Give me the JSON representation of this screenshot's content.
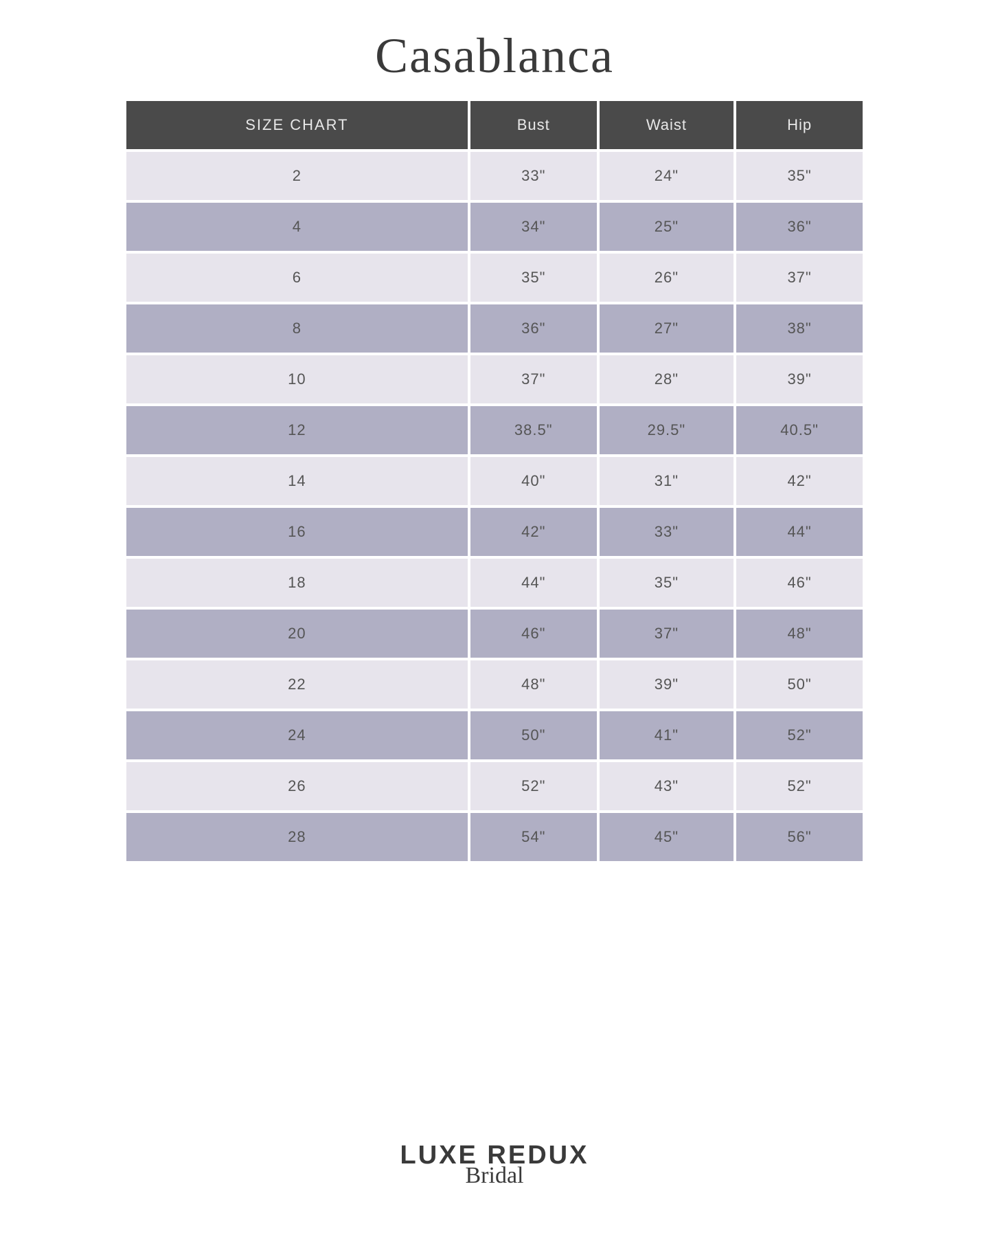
{
  "title": "Casablanca",
  "table": {
    "columns": [
      "SIZE CHART",
      "Bust",
      "Waist",
      "Hip"
    ],
    "rows": [
      [
        "2",
        "33\"",
        "24\"",
        "35\""
      ],
      [
        "4",
        "34\"",
        "25\"",
        "36\""
      ],
      [
        "6",
        "35\"",
        "26\"",
        "37\""
      ],
      [
        "8",
        "36\"",
        "27\"",
        "38\""
      ],
      [
        "10",
        "37\"",
        "28\"",
        "39\""
      ],
      [
        "12",
        "38.5\"",
        "29.5\"",
        "40.5\""
      ],
      [
        "14",
        "40\"",
        "31\"",
        "42\""
      ],
      [
        "16",
        "42\"",
        "33\"",
        "44\""
      ],
      [
        "18",
        "44\"",
        "35\"",
        "46\""
      ],
      [
        "20",
        "46\"",
        "37\"",
        "48\""
      ],
      [
        "22",
        "48\"",
        "39\"",
        "50\""
      ],
      [
        "24",
        "50\"",
        "41\"",
        "52\""
      ],
      [
        "26",
        "52\"",
        "43\"",
        "52\""
      ],
      [
        "28",
        "54\"",
        "45\"",
        "56\""
      ]
    ],
    "header_bg": "#4a4a4a",
    "header_text_color": "#e8e8e8",
    "row_light_bg": "#e7e4ec",
    "row_dark_bg": "#b0afc4",
    "cell_text_color": "#555555",
    "border_spacing": 4,
    "font_size": 22,
    "column_widths": [
      "25%",
      "25%",
      "25%",
      "25%"
    ]
  },
  "footer": {
    "main": "LUXE REDUX",
    "sub": "Bridal"
  },
  "colors": {
    "background": "#ffffff",
    "title_color": "#3a3a3a",
    "footer_color": "#3a3a3a"
  }
}
